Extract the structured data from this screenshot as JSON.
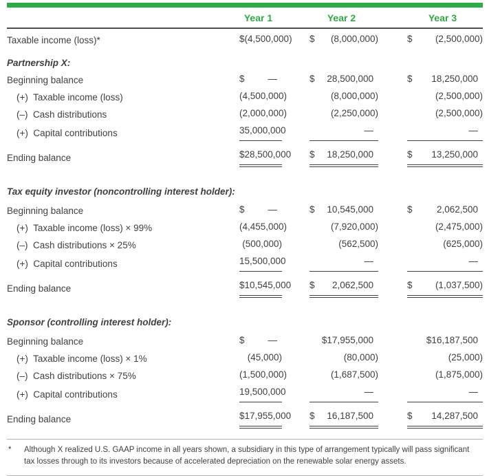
{
  "colors": {
    "accent_green": "#2FAB44",
    "body_text": "#3F3F3F",
    "header_rule": "#4D4D4D",
    "footnote_rule": "#B3B3B3"
  },
  "header": {
    "columns": [
      "Year 1",
      "Year 2",
      "Year 3"
    ]
  },
  "sections": [
    {
      "heading": "",
      "rows": [
        {
          "label": "Taxable income (loss)*",
          "indent": false,
          "style": "plain",
          "cells": [
            {
              "dollar": "$",
              "value": "(4,500,000)"
            },
            {
              "dollar": "$",
              "value": "(8,000,000)"
            },
            {
              "dollar": "$",
              "value": "(2,500,000)"
            }
          ]
        }
      ]
    },
    {
      "heading": "Partnership X:",
      "rows": [
        {
          "label": "Beginning balance",
          "indent": false,
          "style": "plain",
          "cells": [
            {
              "dollar": "$",
              "value": "—"
            },
            {
              "dollar": "$",
              "value": "28,500,000"
            },
            {
              "dollar": "$",
              "value": "18,250,000"
            }
          ]
        },
        {
          "label": "(+)  Taxable income (loss)",
          "indent": true,
          "style": "plain",
          "cells": [
            {
              "dollar": "",
              "value": "(4,500,000)"
            },
            {
              "dollar": "",
              "value": "(8,000,000)"
            },
            {
              "dollar": "",
              "value": "(2,500,000)"
            }
          ]
        },
        {
          "label": "(–)  Cash distributions",
          "indent": true,
          "style": "plain",
          "cells": [
            {
              "dollar": "",
              "value": "(2,000,000)"
            },
            {
              "dollar": "",
              "value": "(2,250,000)"
            },
            {
              "dollar": "",
              "value": "(2,500,000)"
            }
          ]
        },
        {
          "label": "(+)  Capital contributions",
          "indent": true,
          "style": "rule",
          "cells": [
            {
              "dollar": "",
              "value": "35,000,000"
            },
            {
              "dollar": "",
              "value": "—"
            },
            {
              "dollar": "",
              "value": "—"
            }
          ]
        },
        {
          "label": "Ending balance",
          "indent": false,
          "style": "total",
          "cells": [
            {
              "dollar": "$",
              "value": "28,500,000"
            },
            {
              "dollar": "$",
              "value": "18,250,000"
            },
            {
              "dollar": "$",
              "value": "13,250,000"
            }
          ]
        }
      ]
    },
    {
      "heading": "Tax equity investor (noncontrolling interest holder):",
      "rows": [
        {
          "label": "Beginning balance",
          "indent": false,
          "style": "plain",
          "cells": [
            {
              "dollar": "$",
              "value": "—"
            },
            {
              "dollar": "$",
              "value": "10,545,000"
            },
            {
              "dollar": "$",
              "value": "2,062,500"
            }
          ]
        },
        {
          "label": "(+)  Taxable income (loss) × 99%",
          "indent": true,
          "style": "plain",
          "cells": [
            {
              "dollar": "",
              "value": "(4,455,000)"
            },
            {
              "dollar": "",
              "value": "(7,920,000)"
            },
            {
              "dollar": "",
              "value": "(2,475,000)"
            }
          ]
        },
        {
          "label": "(–)  Cash distributions × 25%",
          "indent": true,
          "style": "plain",
          "cells": [
            {
              "dollar": "",
              "value": "(500,000)"
            },
            {
              "dollar": "",
              "value": "(562,500)"
            },
            {
              "dollar": "",
              "value": "(625,000)"
            }
          ]
        },
        {
          "label": "(+)  Capital contributions",
          "indent": true,
          "style": "rule",
          "cells": [
            {
              "dollar": "",
              "value": "15,500,000"
            },
            {
              "dollar": "",
              "value": "—"
            },
            {
              "dollar": "",
              "value": "—"
            }
          ]
        },
        {
          "label": "Ending balance",
          "indent": false,
          "style": "total",
          "cells": [
            {
              "dollar": "$",
              "value": "10,545,000"
            },
            {
              "dollar": "$",
              "value": "2,062,500"
            },
            {
              "dollar": "$",
              "value": "(1,037,500)"
            }
          ]
        }
      ]
    },
    {
      "heading": "Sponsor (controlling interest holder):",
      "rows": [
        {
          "label": "Beginning balance",
          "indent": false,
          "style": "plain",
          "cells": [
            {
              "dollar": "$",
              "value": "—"
            },
            {
              "dollar": "",
              "value": "$17,955,000"
            },
            {
              "dollar": "",
              "value": "$16,187,500"
            }
          ]
        },
        {
          "label": "(+)  Taxable income (loss) × 1%",
          "indent": true,
          "style": "plain",
          "cells": [
            {
              "dollar": "",
              "value": "(45,000)"
            },
            {
              "dollar": "",
              "value": "(80,000)"
            },
            {
              "dollar": "",
              "value": "(25,000)"
            }
          ]
        },
        {
          "label": "(–)  Cash distributions × 75%",
          "indent": true,
          "style": "plain",
          "cells": [
            {
              "dollar": "",
              "value": "(1,500,000)"
            },
            {
              "dollar": "",
              "value": "(1,687,500)"
            },
            {
              "dollar": "",
              "value": "(1,875,000)"
            }
          ]
        },
        {
          "label": "(+)  Capital contributions",
          "indent": true,
          "style": "rule",
          "cells": [
            {
              "dollar": "",
              "value": "19,500,000"
            },
            {
              "dollar": "",
              "value": "—"
            },
            {
              "dollar": "",
              "value": "—"
            }
          ]
        },
        {
          "label": "Ending balance",
          "indent": false,
          "style": "total",
          "cells": [
            {
              "dollar": "$",
              "value": "17,955,000"
            },
            {
              "dollar": "$",
              "value": "16,187,500"
            },
            {
              "dollar": "$",
              "value": "14,287,500"
            }
          ]
        }
      ]
    }
  ],
  "footnote": {
    "marker": "*",
    "text": "Although X realized U.S. GAAP income in all years shown, a subsidiary in this type of arrangement typically will pass significant tax losses through to its investors because of accelerated depreciation on the renewable solar energy assets."
  }
}
